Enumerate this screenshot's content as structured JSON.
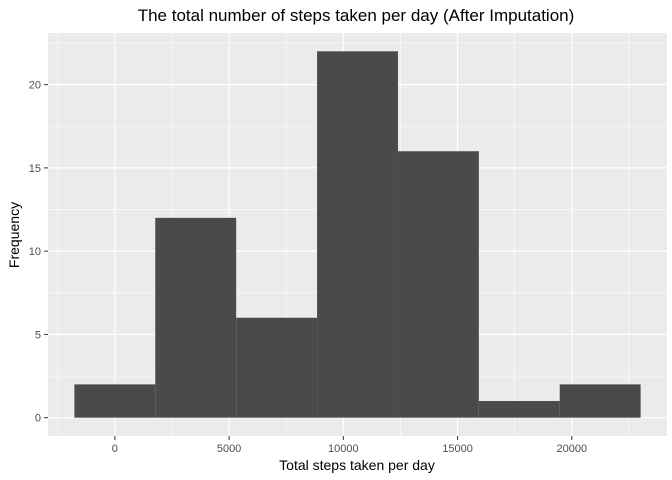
{
  "chart_data": {
    "type": "bar",
    "title": "The total number of steps taken per day (After Imputation)",
    "xlabel": "Total steps taken per day",
    "ylabel": "Frequency",
    "bins": [
      {
        "x0": -1770,
        "x1": 1770,
        "count": 2
      },
      {
        "x0": 1770,
        "x1": 5310,
        "count": 12
      },
      {
        "x0": 5310,
        "x1": 8850,
        "count": 6
      },
      {
        "x0": 8850,
        "x1": 12390,
        "count": 22
      },
      {
        "x0": 12390,
        "x1": 15930,
        "count": 16
      },
      {
        "x0": 15930,
        "x1": 19470,
        "count": 1
      },
      {
        "x0": 19470,
        "x1": 23010,
        "count": 2
      }
    ],
    "xlim": [
      -2925,
      24165
    ],
    "ylim": [
      -1.1,
      23.1
    ],
    "x_ticks": [
      0,
      5000,
      10000,
      15000,
      20000
    ],
    "y_ticks": [
      0,
      5,
      10,
      15,
      20
    ],
    "x_tick_labels": [
      "0",
      "5000",
      "10000",
      "15000",
      "20000"
    ],
    "y_tick_labels": [
      "0",
      "5",
      "10",
      "15",
      "20"
    ],
    "grid": true,
    "colors": {
      "panel": "#ebebeb",
      "grid": "#ffffff",
      "bar": "#4a4a4a",
      "tick_text": "#4d4d4d"
    }
  }
}
